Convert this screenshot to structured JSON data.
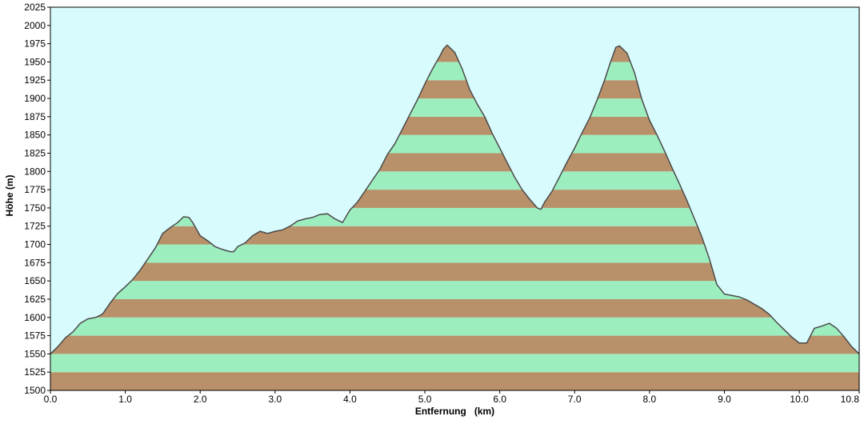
{
  "chart_data": {
    "type": "area",
    "xlabel": "Entfernung   (km)",
    "ylabel": "Höhe (m)",
    "xlim": [
      0,
      10.8
    ],
    "ylim": [
      1500,
      2025
    ],
    "x_ticks": [
      "0.0",
      "1.0",
      "2.0",
      "3.0",
      "4.0",
      "5.0",
      "6.0",
      "7.0",
      "8.0",
      "9.0",
      "10.0",
      "10.8"
    ],
    "x_tick_values": [
      0,
      1,
      2,
      3,
      4,
      5,
      6,
      7,
      8,
      9,
      10,
      10.8
    ],
    "y_ticks": [
      "1500",
      "1525",
      "1550",
      "1575",
      "1600",
      "1625",
      "1650",
      "1675",
      "1700",
      "1725",
      "1750",
      "1775",
      "1800",
      "1825",
      "1850",
      "1875",
      "1900",
      "1925",
      "1950",
      "1975",
      "2000",
      "2025"
    ],
    "y_tick_values": [
      1500,
      1525,
      1550,
      1575,
      1600,
      1625,
      1650,
      1675,
      1700,
      1725,
      1750,
      1775,
      1800,
      1825,
      1850,
      1875,
      1900,
      1925,
      1950,
      1975,
      2000,
      2025
    ],
    "grid": false,
    "background_color": "#d8fbfd",
    "band_colors": [
      "#b8916a",
      "#9deebf"
    ],
    "line_color": "#4a4a4a",
    "series": [
      {
        "x": [
          0,
          0.1,
          0.2,
          0.3,
          0.4,
          0.5,
          0.6,
          0.65,
          0.7,
          0.8,
          0.9,
          1.0,
          1.1,
          1.2,
          1.3,
          1.4,
          1.5,
          1.6,
          1.7,
          1.78,
          1.85,
          1.9,
          2.0,
          2.1,
          2.2,
          2.3,
          2.4,
          2.45,
          2.5,
          2.6,
          2.7,
          2.8,
          2.9,
          3.0,
          3.1,
          3.2,
          3.3,
          3.4,
          3.5,
          3.6,
          3.7,
          3.8,
          3.9,
          4.0,
          4.1,
          4.2,
          4.3,
          4.4,
          4.5,
          4.6,
          4.7,
          4.8,
          4.9,
          5.0,
          5.1,
          5.2,
          5.25,
          5.3,
          5.4,
          5.5,
          5.6,
          5.7,
          5.8,
          5.9,
          6.0,
          6.1,
          6.2,
          6.3,
          6.4,
          6.5,
          6.55,
          6.6,
          6.7,
          6.8,
          6.9,
          7.0,
          7.1,
          7.2,
          7.3,
          7.4,
          7.48,
          7.55,
          7.6,
          7.7,
          7.8,
          7.9,
          8.0,
          8.1,
          8.2,
          8.3,
          8.4,
          8.5,
          8.6,
          8.7,
          8.8,
          8.9,
          9.0,
          9.1,
          9.2,
          9.3,
          9.4,
          9.5,
          9.6,
          9.7,
          9.8,
          9.9,
          10.0,
          10.1,
          10.15,
          10.2,
          10.3,
          10.4,
          10.5,
          10.6,
          10.7,
          10.8
        ],
        "y": [
          1550,
          1560,
          1572,
          1580,
          1592,
          1598,
          1600,
          1602,
          1605,
          1620,
          1633,
          1642,
          1652,
          1665,
          1680,
          1695,
          1715,
          1723,
          1730,
          1738,
          1737,
          1730,
          1712,
          1705,
          1697,
          1693,
          1690,
          1690,
          1697,
          1702,
          1712,
          1718,
          1715,
          1718,
          1720,
          1725,
          1732,
          1735,
          1737,
          1741,
          1742,
          1735,
          1730,
          1747,
          1758,
          1773,
          1788,
          1803,
          1823,
          1838,
          1858,
          1878,
          1898,
          1920,
          1940,
          1958,
          1968,
          1973,
          1963,
          1940,
          1912,
          1892,
          1875,
          1852,
          1832,
          1812,
          1792,
          1775,
          1762,
          1750,
          1748,
          1758,
          1773,
          1793,
          1813,
          1832,
          1853,
          1873,
          1898,
          1925,
          1950,
          1970,
          1972,
          1962,
          1935,
          1898,
          1870,
          1850,
          1828,
          1805,
          1783,
          1760,
          1735,
          1710,
          1680,
          1645,
          1632,
          1630,
          1628,
          1624,
          1618,
          1612,
          1604,
          1593,
          1583,
          1573,
          1565,
          1565,
          1575,
          1585,
          1588,
          1592,
          1585,
          1573,
          1560,
          1550
        ]
      }
    ]
  }
}
